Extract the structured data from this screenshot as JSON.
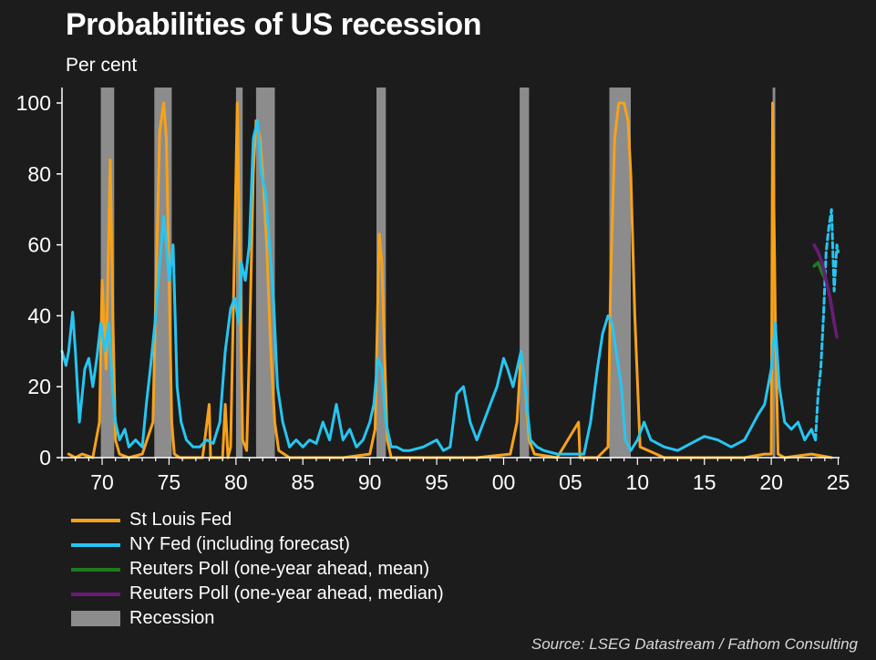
{
  "title": "Probabilities of US recession",
  "subtitle": "Per cent",
  "source": "Source: LSEG Datastream / Fathom Consulting",
  "colors": {
    "background": "#1c1c1c",
    "stlouis": "#f7a21b",
    "nyfed": "#26c6f2",
    "reuters_mean": "#1f7a1f",
    "reuters_median": "#6b1a7a",
    "recession": "#8c8c8c",
    "axis": "#ffffff"
  },
  "legend": [
    {
      "label": "St Louis Fed",
      "key": "stlouis",
      "kind": "line"
    },
    {
      "label": "NY Fed (including forecast)",
      "key": "nyfed",
      "kind": "line"
    },
    {
      "label": "Reuters Poll (one-year ahead, mean)",
      "key": "reuters_mean",
      "kind": "line"
    },
    {
      "label": "Reuters Poll (one-year ahead, median)",
      "key": "reuters_median",
      "kind": "line"
    },
    {
      "label": "Recession",
      "key": "recession",
      "kind": "box"
    }
  ],
  "chart_data": {
    "type": "line",
    "title": "Probabilities of US recession",
    "ylabel": "Per cent",
    "xlabel": "",
    "xlim": [
      1967.0,
      2025.1
    ],
    "ylim": [
      0,
      100
    ],
    "x_ticks": [
      1970,
      1975,
      1980,
      1985,
      1990,
      1995,
      2000,
      2005,
      2010,
      2015,
      2020,
      2025
    ],
    "x_tick_labels": [
      "70",
      "75",
      "80",
      "85",
      "90",
      "95",
      "00",
      "05",
      "10",
      "15",
      "20",
      "25"
    ],
    "y_ticks": [
      0,
      20,
      40,
      60,
      80,
      100
    ],
    "y_tick_labels": [
      "0",
      "20",
      "40",
      "60",
      "80",
      "100"
    ],
    "grid": false,
    "legend_position": "bottom-left",
    "recessions": [
      [
        1969.9,
        1970.9
      ],
      [
        1973.9,
        1975.2
      ],
      [
        1980.0,
        1980.5
      ],
      [
        1981.5,
        1982.9
      ],
      [
        1990.5,
        1991.2
      ],
      [
        2001.2,
        2001.9
      ],
      [
        2007.9,
        2009.5
      ],
      [
        2020.1,
        2020.3
      ]
    ],
    "series": [
      {
        "name": "St Louis Fed",
        "key": "stlouis",
        "style": "solid",
        "x": [
          1967.5,
          1968.0,
          1968.5,
          1969.3,
          1969.8,
          1970.0,
          1970.3,
          1970.6,
          1970.8,
          1971.0,
          1971.3,
          1972.0,
          1973.0,
          1973.8,
          1974.0,
          1974.3,
          1974.6,
          1974.8,
          1975.0,
          1975.2,
          1975.4,
          1975.8,
          1976.5,
          1977.5,
          1978.0,
          1978.1,
          1978.3,
          1979.0,
          1979.2,
          1979.4,
          1979.6,
          1980.0,
          1980.1,
          1980.3,
          1980.5,
          1980.8,
          1981.0,
          1981.3,
          1981.5,
          1981.8,
          1982.0,
          1982.3,
          1982.6,
          1982.9,
          1983.2,
          1984.0,
          1986.0,
          1988.0,
          1990.0,
          1990.4,
          1990.7,
          1990.9,
          1991.1,
          1991.3,
          1991.6,
          1992.5,
          1995.0,
          1998.0,
          2000.5,
          2001.0,
          2001.3,
          2001.6,
          2001.9,
          2002.3,
          2004.0,
          2005.6,
          2005.7,
          2005.9,
          2007.0,
          2007.8,
          2008.0,
          2008.3,
          2008.6,
          2009.0,
          2009.3,
          2009.5,
          2009.8,
          2010.2,
          2012.0,
          2015.0,
          2018.0,
          2019.5,
          2020.0,
          2020.1,
          2020.3,
          2020.5,
          2021.0,
          2023.0,
          2024.5
        ],
        "y": [
          1,
          0,
          1,
          0,
          10,
          50,
          25,
          84,
          40,
          5,
          1,
          0,
          1,
          10,
          45,
          92,
          100,
          90,
          50,
          10,
          1,
          0,
          0,
          0,
          15,
          0,
          0,
          0,
          15,
          0,
          3,
          80,
          100,
          50,
          5,
          2,
          30,
          80,
          95,
          90,
          80,
          60,
          30,
          10,
          2,
          0,
          0,
          0,
          1,
          8,
          63,
          55,
          30,
          5,
          0,
          0,
          0,
          0,
          1,
          10,
          30,
          20,
          5,
          1,
          0,
          10,
          0,
          0,
          0,
          3,
          50,
          90,
          100,
          100,
          95,
          80,
          40,
          3,
          0,
          0,
          0,
          1,
          1,
          100,
          40,
          1,
          0,
          1,
          0
        ]
      },
      {
        "name": "NY Fed (including forecast)",
        "key": "nyfed",
        "style": "solid",
        "x": [
          1967.0,
          1967.3,
          1967.5,
          1967.8,
          1968.0,
          1968.3,
          1968.7,
          1969.0,
          1969.3,
          1969.6,
          1969.9,
          1970.2,
          1970.5,
          1970.8,
          1971.0,
          1971.3,
          1971.7,
          1972.0,
          1972.5,
          1973.0,
          1973.3,
          1973.6,
          1974.0,
          1974.3,
          1974.6,
          1974.8,
          1975.0,
          1975.3,
          1975.6,
          1975.9,
          1976.3,
          1976.8,
          1977.3,
          1977.8,
          1978.3,
          1978.8,
          1979.2,
          1979.6,
          1979.9,
          1980.2,
          1980.4,
          1980.7,
          1981.0,
          1981.3,
          1981.6,
          1981.9,
          1982.2,
          1982.5,
          1982.8,
          1983.1,
          1983.5,
          1984.0,
          1984.5,
          1985.0,
          1985.5,
          1986.0,
          1986.5,
          1987.0,
          1987.5,
          1988.0,
          1988.5,
          1989.0,
          1989.5,
          1990.0,
          1990.3,
          1990.6,
          1990.9,
          1991.2,
          1991.6,
          1992.0,
          1992.5,
          1993.0,
          1994.0,
          1995.0,
          1995.5,
          1996.0,
          1996.5,
          1997.0,
          1997.5,
          1998.0,
          1998.5,
          1999.0,
          1999.5,
          2000.0,
          2000.3,
          2000.7,
          2001.0,
          2001.3,
          2001.6,
          2002.0,
          2002.5,
          2003.0,
          2004.0,
          2005.0,
          2006.0,
          2006.5,
          2007.0,
          2007.4,
          2007.8,
          2008.1,
          2008.4,
          2008.8,
          2009.1,
          2009.5,
          2010.0,
          2010.5,
          2011.0,
          2012.0,
          2013.0,
          2014.0,
          2015.0,
          2016.0,
          2017.0,
          2018.0,
          2019.0,
          2019.5,
          2020.0,
          2020.3,
          2020.6,
          2021.0,
          2021.5,
          2022.0,
          2022.5,
          2023.0,
          2023.3
        ],
        "y": [
          30,
          26,
          30,
          41,
          30,
          10,
          25,
          28,
          20,
          28,
          38,
          30,
          38,
          18,
          10,
          5,
          8,
          3,
          5,
          3,
          15,
          25,
          40,
          55,
          68,
          60,
          50,
          60,
          20,
          10,
          5,
          3,
          3,
          5,
          4,
          10,
          30,
          42,
          45,
          38,
          55,
          50,
          60,
          90,
          95,
          80,
          75,
          60,
          45,
          20,
          10,
          3,
          5,
          3,
          5,
          4,
          10,
          5,
          15,
          5,
          8,
          3,
          5,
          10,
          15,
          28,
          25,
          10,
          3,
          3,
          2,
          2,
          3,
          5,
          2,
          3,
          18,
          20,
          10,
          5,
          10,
          15,
          20,
          28,
          25,
          20,
          25,
          30,
          20,
          5,
          3,
          2,
          1,
          1,
          1,
          10,
          25,
          35,
          40,
          38,
          30,
          20,
          5,
          2,
          5,
          10,
          5,
          3,
          2,
          4,
          6,
          5,
          3,
          5,
          12,
          15,
          25,
          38,
          20,
          10,
          8,
          10,
          5,
          8,
          5
        ]
      },
      {
        "name": "NY Fed (including forecast)",
        "key": "nyfed",
        "style": "dashed",
        "x": [
          2023.3,
          2023.5,
          2023.7,
          2023.9,
          2024.1,
          2024.3,
          2024.5,
          2024.7,
          2024.9,
          2025.0
        ],
        "y": [
          5,
          18,
          25,
          40,
          58,
          65,
          70,
          47,
          60,
          58
        ]
      },
      {
        "name": "Reuters Poll (one-year ahead, mean)",
        "key": "reuters_mean",
        "style": "solid",
        "x": [
          2023.2,
          2023.5,
          2023.8,
          2024.1,
          2024.4,
          2024.7
        ],
        "y": [
          54,
          55,
          52,
          50,
          45,
          38
        ]
      },
      {
        "name": "Reuters Poll (one-year ahead, median)",
        "key": "reuters_median",
        "style": "solid",
        "x": [
          2023.2,
          2023.5,
          2023.8,
          2024.1,
          2024.4,
          2024.7,
          2024.9
        ],
        "y": [
          60,
          58,
          55,
          50,
          45,
          38,
          34
        ]
      }
    ]
  }
}
